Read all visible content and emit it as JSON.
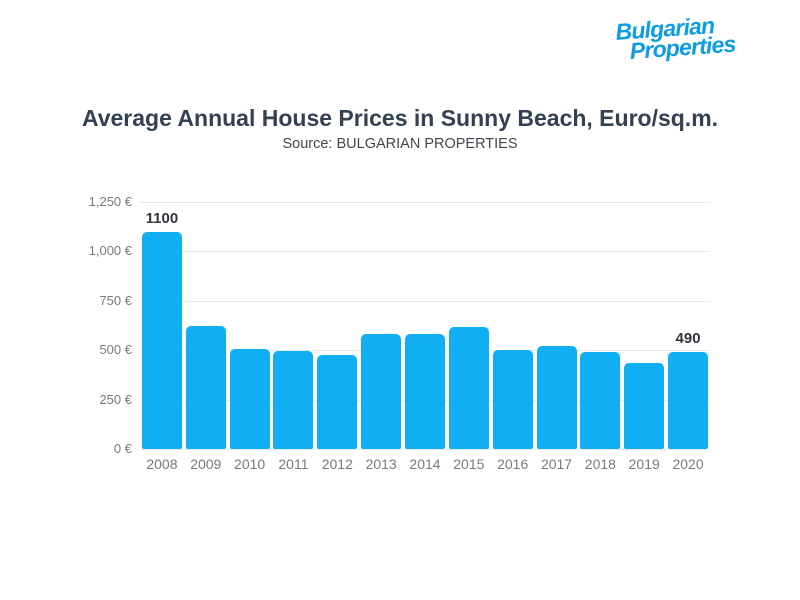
{
  "logo": {
    "line1": "Bulgarian",
    "line2": "Properties",
    "color": "#0d9de1"
  },
  "chart_data": {
    "type": "bar",
    "title": "Average Annual House Prices in Sunny Beach, Euro/sq.m.",
    "subtitle": "Source: BULGARIAN PROPERTIES",
    "categories": [
      "2008",
      "2009",
      "2010",
      "2011",
      "2012",
      "2013",
      "2014",
      "2015",
      "2016",
      "2017",
      "2018",
      "2019",
      "2020"
    ],
    "values": [
      1100,
      625,
      505,
      495,
      475,
      580,
      580,
      620,
      500,
      520,
      490,
      435,
      490
    ],
    "value_labels": {
      "2008": "1100",
      "2020": "490"
    },
    "y_ticks": [
      {
        "value": 1250,
        "label": "1,250 €"
      },
      {
        "value": 1000,
        "label": "1,000 €"
      },
      {
        "value": 750,
        "label": "750 €"
      },
      {
        "value": 500,
        "label": "500 €"
      },
      {
        "value": 250,
        "label": "250 €"
      },
      {
        "value": 0,
        "label": "0 €"
      }
    ],
    "ylim": [
      0,
      1250
    ],
    "xlabel": "",
    "ylabel": "",
    "bar_color": "#10aef3",
    "grid": true,
    "legend": false
  }
}
